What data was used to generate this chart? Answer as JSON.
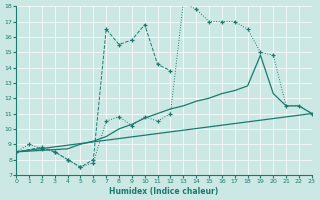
{
  "xlabel": "Humidex (Indice chaleur)",
  "xlim": [
    0,
    23
  ],
  "ylim": [
    7,
    18
  ],
  "xticks": [
    0,
    1,
    2,
    3,
    4,
    5,
    6,
    7,
    8,
    9,
    10,
    11,
    12,
    13,
    14,
    15,
    16,
    17,
    18,
    19,
    20,
    21,
    22,
    23
  ],
  "yticks": [
    7,
    8,
    9,
    10,
    11,
    12,
    13,
    14,
    15,
    16,
    17,
    18
  ],
  "bg_color": "#cce8e4",
  "line_color": "#1a7a6e",
  "line1_x": [
    0,
    1,
    2,
    3,
    4,
    5,
    6,
    7,
    8,
    9,
    10,
    11,
    12,
    13,
    14,
    15,
    16,
    17,
    18,
    19,
    20,
    21,
    22,
    23
  ],
  "line1_y": [
    8.5,
    9.0,
    8.7,
    8.5,
    8.0,
    7.5,
    7.8,
    10.5,
    10.8,
    10.2,
    10.8,
    10.5,
    11.0,
    18.2,
    17.8,
    17.0,
    17.0,
    17.0,
    16.5,
    15.0,
    14.8,
    11.5,
    11.5,
    11.0
  ],
  "line2_x": [
    0,
    2,
    3,
    4,
    5,
    6,
    7,
    8,
    9,
    10,
    11,
    12
  ],
  "line2_y": [
    8.5,
    8.8,
    8.5,
    8.0,
    7.5,
    8.0,
    16.5,
    15.5,
    15.8,
    16.8,
    14.2,
    13.8
  ],
  "line3_x": [
    0,
    2,
    4,
    5,
    6,
    7,
    8,
    9,
    10,
    11,
    12,
    13,
    14,
    15,
    16,
    17,
    18,
    19,
    20,
    21,
    22,
    23
  ],
  "line3_y": [
    8.5,
    8.6,
    8.7,
    9.0,
    9.2,
    9.5,
    10.0,
    10.3,
    10.7,
    11.0,
    11.3,
    11.5,
    11.8,
    12.0,
    12.3,
    12.5,
    12.8,
    14.8,
    12.3,
    11.5,
    11.5,
    11.0
  ],
  "line4_x": [
    0,
    23
  ],
  "line4_y": [
    8.5,
    11.0
  ]
}
